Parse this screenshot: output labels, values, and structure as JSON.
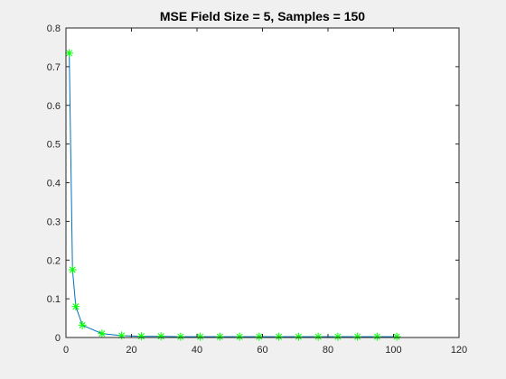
{
  "chart_data": {
    "type": "line",
    "title": "MSE  Field Size = 5, Samples = 150",
    "xlabel": "",
    "ylabel": "",
    "xlim": [
      0,
      120
    ],
    "ylim": [
      0,
      0.8
    ],
    "xticks": [
      0,
      20,
      40,
      60,
      80,
      100,
      120
    ],
    "yticks": [
      0,
      0.1,
      0.2,
      0.3,
      0.4,
      0.5,
      0.6,
      0.7,
      0.8
    ],
    "xtick_labels": [
      "0",
      "20",
      "40",
      "60",
      "80",
      "100",
      "120"
    ],
    "ytick_labels": [
      "0",
      "0.1",
      "0.2",
      "0.3",
      "0.4",
      "0.5",
      "0.6",
      "0.7",
      "0.8"
    ],
    "grid": false,
    "box": true,
    "background_color": "#f0f0f0",
    "axes_color": "#ffffff",
    "series": [
      {
        "line_color": "#0072bd",
        "marker": "asterisk",
        "marker_color": "#00ff00",
        "x": [
          1,
          2,
          3,
          5,
          11,
          17,
          23,
          29,
          35,
          41,
          47,
          53,
          59,
          65,
          71,
          77,
          83,
          89,
          95,
          101
        ],
        "y": [
          0.735,
          0.175,
          0.08,
          0.032,
          0.01,
          0.005,
          0.003,
          0.003,
          0.002,
          0.002,
          0.002,
          0.002,
          0.002,
          0.002,
          0.002,
          0.002,
          0.002,
          0.002,
          0.002,
          0.002
        ]
      }
    ]
  }
}
